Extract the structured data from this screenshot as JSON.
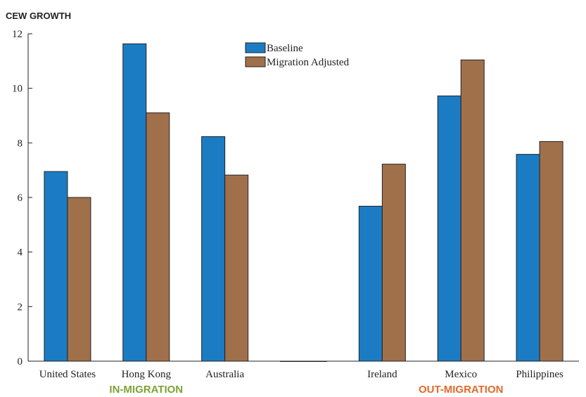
{
  "chart_data": {
    "type": "bar",
    "ylabel": "CEW GROWTH",
    "ylim": [
      0,
      12
    ],
    "yticks": [
      0,
      2,
      4,
      6,
      8,
      10,
      12
    ],
    "grid": false,
    "legend_position": "top-center",
    "categories": [
      "United States",
      "Hong Kong",
      "Australia",
      "",
      "Ireland",
      "Mexico",
      "Philippines"
    ],
    "series": [
      {
        "name": "Baseline",
        "color": "#1b7cc4",
        "values": [
          6.95,
          11.63,
          8.23,
          0,
          5.68,
          9.72,
          7.58
        ]
      },
      {
        "name": "Migration Adjusted",
        "color": "#a0704b",
        "values": [
          6.0,
          9.1,
          6.82,
          0,
          7.22,
          11.04,
          8.05
        ]
      }
    ],
    "group_labels": [
      {
        "text": "IN-MIGRATION",
        "color": "#7da233"
      },
      {
        "text": "OUT-MIGRATION",
        "color": "#e06a2a"
      }
    ]
  }
}
